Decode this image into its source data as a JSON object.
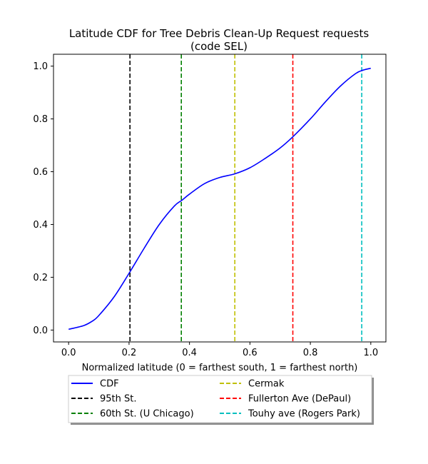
{
  "chart_data": {
    "type": "line",
    "title_line1": "Latitude CDF for Tree Debris Clean-Up Request  requests",
    "title_line2": "(code SEL)",
    "xlabel": "Normalized latitude (0 = farthest south, 1 = farthest north)",
    "ylabel": "",
    "xlim": [
      -0.05,
      1.05
    ],
    "ylim": [
      -0.045,
      1.045
    ],
    "xticks": [
      0.0,
      0.2,
      0.4,
      0.6,
      0.8,
      1.0
    ],
    "xtick_labels": [
      "0.0",
      "0.2",
      "0.4",
      "0.6",
      "0.8",
      "1.0"
    ],
    "yticks": [
      0.0,
      0.2,
      0.4,
      0.6,
      0.8,
      1.0
    ],
    "ytick_labels": [
      "0.0",
      "0.2",
      "0.4",
      "0.6",
      "0.8",
      "1.0"
    ],
    "grid": false,
    "legend_placement": "below",
    "series": [
      {
        "name": "CDF",
        "color": "#0000ff",
        "style": "solid",
        "x": [
          0.0,
          0.05,
          0.08,
          0.1,
          0.15,
          0.2,
          0.25,
          0.3,
          0.35,
          0.375,
          0.4,
          0.45,
          0.5,
          0.55,
          0.6,
          0.65,
          0.7,
          0.74,
          0.8,
          0.85,
          0.9,
          0.95,
          0.975,
          1.0
        ],
        "y": [
          0.003,
          0.017,
          0.035,
          0.055,
          0.125,
          0.215,
          0.31,
          0.4,
          0.47,
          0.492,
          0.515,
          0.555,
          0.578,
          0.592,
          0.615,
          0.65,
          0.69,
          0.73,
          0.8,
          0.865,
          0.925,
          0.972,
          0.985,
          0.992
        ]
      }
    ],
    "vlines": [
      {
        "name": "95th St.",
        "x": 0.203,
        "color": "#000000"
      },
      {
        "name": "60th St. (U Chicago)",
        "x": 0.373,
        "color": "#008000"
      },
      {
        "name": "Cermak",
        "x": 0.55,
        "color": "#bfbf00"
      },
      {
        "name": "Fullerton Ave (DePaul)",
        "x": 0.742,
        "color": "#ff0000"
      },
      {
        "name": "Touhy ave (Rogers Park)",
        "x": 0.97,
        "color": "#00bfbf"
      }
    ]
  }
}
